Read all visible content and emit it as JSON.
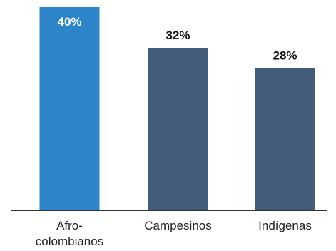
{
  "chart_data": {
    "type": "bar",
    "categories": [
      [
        "Afro-",
        "colombianos"
      ],
      [
        "Campesinos"
      ],
      [
        "Indígenas"
      ]
    ],
    "values": [
      40,
      32,
      28
    ],
    "value_labels": [
      "40%",
      "32%",
      "28%"
    ],
    "unit": "%",
    "ylim": [
      0,
      40
    ],
    "title": "",
    "xlabel": "",
    "ylabel": "",
    "grid": false,
    "legend": "none",
    "colors": {
      "highlight_bar": "#2e84c9",
      "bar": "#435c7a",
      "axis": "#333333",
      "label_on_bar": "#ffffff",
      "label_above_bar": "#111111"
    },
    "highlighted_index": 0
  }
}
